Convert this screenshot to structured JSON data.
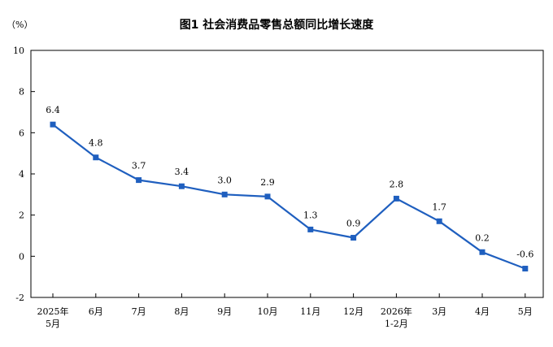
{
  "chart_data": {
    "type": "line",
    "title": "图1 社会消费品零售总额同比增长速度",
    "unit_label": "（%）",
    "categories": [
      [
        "2025年",
        "5月"
      ],
      [
        "6月"
      ],
      [
        "7月"
      ],
      [
        "8月"
      ],
      [
        "9月"
      ],
      [
        "10月"
      ],
      [
        "11月"
      ],
      [
        "12月"
      ],
      [
        "2026年",
        "1-2月"
      ],
      [
        "3月"
      ],
      [
        "4月"
      ],
      [
        "5月"
      ]
    ],
    "series": [
      {
        "values": [
          6.4,
          4.8,
          3.7,
          3.4,
          3.0,
          2.9,
          1.3,
          0.9,
          2.8,
          1.7,
          0.2,
          -0.6
        ],
        "labels": [
          "6.4",
          "4.8",
          "3.7",
          "3.4",
          "3.0",
          "2.9",
          "1.3",
          "0.9",
          "2.8",
          "1.7",
          "0.2",
          "-0.6"
        ]
      }
    ],
    "yticks": [
      -2,
      0,
      2,
      4,
      6,
      8,
      10
    ],
    "ylim": [
      -2,
      10
    ],
    "grid": false,
    "line_color": "#1f5fbf"
  }
}
